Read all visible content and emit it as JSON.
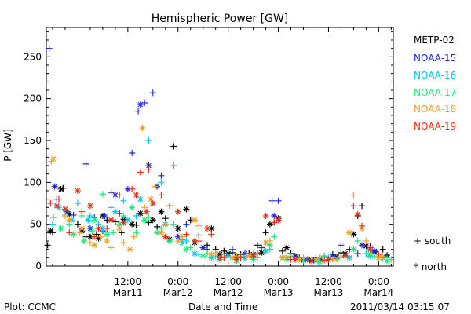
{
  "footer": {
    "plot_label": "Plot: CCMC",
    "xlabel": "Date and Time",
    "timestamp": "2011/03/14 03:15:07"
  },
  "chart_data": {
    "type": "scatter",
    "title": "Hemispheric Power [GW]",
    "xlabel": "Date and Time",
    "ylabel": "P [GW]",
    "x_unit": "hours since 2011-03-11 00:00 UT",
    "xlim": [
      -7.5,
      75.5
    ],
    "ylim": [
      0,
      285
    ],
    "yticks": [
      0,
      50,
      100,
      150,
      200,
      250
    ],
    "xticks": [
      {
        "x": 12,
        "time": "12:00",
        "date": "Mar11"
      },
      {
        "x": 24,
        "time": "0:00",
        "date": "Mar12"
      },
      {
        "x": 36,
        "time": "12:00",
        "date": "Mar12"
      },
      {
        "x": 48,
        "time": "0:00",
        "date": "Mar13"
      },
      {
        "x": 60,
        "time": "12:00",
        "date": "Mar13"
      },
      {
        "x": 72,
        "time": "0:00",
        "date": "Mar14"
      }
    ],
    "marker_legend": [
      {
        "symbol": "+",
        "label": "south"
      },
      {
        "symbol": "*",
        "label": "north"
      }
    ],
    "series": [
      {
        "name": "METP-02",
        "color": "#000000",
        "south": [
          [
            -7.2,
            25
          ],
          [
            -6,
            40
          ],
          [
            -3.5,
            93
          ],
          [
            0,
            50
          ],
          [
            2,
            35
          ],
          [
            4.5,
            38
          ],
          [
            7,
            55
          ],
          [
            9,
            53
          ],
          [
            10.5,
            40
          ],
          [
            14,
            49
          ],
          [
            17,
            52
          ],
          [
            19,
            47
          ],
          [
            21,
            57
          ],
          [
            23,
            143
          ],
          [
            25,
            32
          ],
          [
            27,
            55
          ],
          [
            29,
            37
          ],
          [
            31,
            25
          ],
          [
            33,
            20
          ],
          [
            35,
            18
          ],
          [
            37,
            16
          ],
          [
            39,
            14
          ],
          [
            41,
            15
          ],
          [
            43,
            25
          ],
          [
            45,
            40
          ],
          [
            47,
            52
          ],
          [
            49,
            18
          ],
          [
            51,
            15
          ],
          [
            53,
            10
          ],
          [
            55,
            8
          ],
          [
            57,
            10
          ],
          [
            59,
            12
          ],
          [
            61,
            14
          ],
          [
            63,
            16
          ],
          [
            65,
            20
          ],
          [
            67,
            60
          ],
          [
            68,
            72
          ],
          [
            70,
            24
          ],
          [
            73,
            20
          ]
        ],
        "north": [
          [
            -6.5,
            42
          ],
          [
            -4,
            92
          ],
          [
            -2,
            62
          ],
          [
            1,
            42
          ],
          [
            3,
            35
          ],
          [
            5,
            33
          ],
          [
            6,
            60
          ],
          [
            8,
            55
          ],
          [
            11,
            56
          ],
          [
            13,
            50
          ],
          [
            15,
            63
          ],
          [
            18,
            55
          ],
          [
            20,
            65
          ],
          [
            22,
            32
          ],
          [
            24,
            45
          ],
          [
            26,
            68
          ],
          [
            28,
            28
          ],
          [
            30,
            22
          ],
          [
            32,
            45
          ],
          [
            34,
            14
          ],
          [
            36,
            15
          ],
          [
            38,
            12
          ],
          [
            40,
            10
          ],
          [
            42,
            14
          ],
          [
            44,
            16
          ],
          [
            46,
            50
          ],
          [
            48,
            57
          ],
          [
            50,
            22
          ],
          [
            52,
            12
          ],
          [
            54,
            7
          ],
          [
            56,
            7
          ],
          [
            58,
            8
          ],
          [
            60,
            8
          ],
          [
            62,
            11
          ],
          [
            64,
            15
          ],
          [
            66,
            38
          ],
          [
            69,
            24
          ],
          [
            71,
            17
          ],
          [
            74,
            13
          ]
        ]
      },
      {
        "name": "NOAA-15",
        "color": "#1a2bd6",
        "south": [
          [
            -6.8,
            260
          ],
          [
            -5,
            80
          ],
          [
            -1,
            61
          ],
          [
            2,
            122
          ],
          [
            4,
            58
          ],
          [
            6,
            42
          ],
          [
            8,
            88
          ],
          [
            10,
            63
          ],
          [
            13,
            135
          ],
          [
            14.5,
            185
          ],
          [
            16,
            195
          ],
          [
            18,
            207
          ],
          [
            20,
            108
          ],
          [
            26,
            50
          ],
          [
            31,
            20
          ],
          [
            37,
            20
          ],
          [
            44,
            22
          ],
          [
            46.5,
            78
          ],
          [
            48,
            78
          ],
          [
            52,
            12
          ],
          [
            58,
            8
          ],
          [
            63,
            25
          ],
          [
            67,
            15
          ],
          [
            70,
            22
          ]
        ],
        "north": [
          [
            -5.5,
            95
          ],
          [
            -2.5,
            65
          ],
          [
            3,
            45
          ],
          [
            6.5,
            60
          ],
          [
            9,
            85
          ],
          [
            12,
            92
          ],
          [
            15,
            193
          ],
          [
            17,
            120
          ],
          [
            19,
            95
          ],
          [
            24,
            35
          ],
          [
            30,
            22
          ],
          [
            40,
            15
          ],
          [
            47,
            60
          ],
          [
            55,
            8
          ],
          [
            61,
            12
          ],
          [
            68,
            25
          ],
          [
            71,
            18
          ]
        ]
      },
      {
        "name": "NOAA-16",
        "color": "#00c8e0",
        "south": [
          [
            -6,
            50
          ],
          [
            -3,
            62
          ],
          [
            0,
            75
          ],
          [
            3,
            60
          ],
          [
            5,
            50
          ],
          [
            8,
            70
          ],
          [
            11,
            78
          ],
          [
            14,
            60
          ],
          [
            17,
            150
          ],
          [
            20,
            100
          ],
          [
            23,
            120
          ],
          [
            26,
            30
          ],
          [
            29,
            14
          ],
          [
            33,
            12
          ],
          [
            38,
            10
          ],
          [
            42,
            12
          ],
          [
            46,
            20
          ],
          [
            50,
            10
          ],
          [
            56,
            8
          ],
          [
            60,
            10
          ],
          [
            64,
            12
          ],
          [
            69,
            15
          ],
          [
            74,
            10
          ]
        ],
        "north": [
          [
            -4.5,
            70
          ],
          [
            -1.5,
            55
          ],
          [
            2.5,
            55
          ],
          [
            6,
            45
          ],
          [
            9,
            65
          ],
          [
            12,
            55
          ],
          [
            15,
            80
          ],
          [
            18,
            75
          ],
          [
            21,
            50
          ],
          [
            25,
            28
          ],
          [
            28,
            15
          ],
          [
            32,
            10
          ],
          [
            36,
            12
          ],
          [
            40,
            10
          ],
          [
            45,
            18
          ],
          [
            49,
            10
          ],
          [
            53,
            8
          ],
          [
            57,
            6
          ],
          [
            61,
            8
          ],
          [
            65,
            10
          ],
          [
            70,
            12
          ],
          [
            73,
            10
          ]
        ]
      },
      {
        "name": "NOAA-17",
        "color": "#1ee87a",
        "south": [
          [
            -5.8,
            58
          ],
          [
            -2,
            50
          ],
          [
            1,
            60
          ],
          [
            3.5,
            42
          ],
          [
            6,
            86
          ],
          [
            8.5,
            40
          ],
          [
            11,
            60
          ],
          [
            14,
            40
          ],
          [
            17,
            58
          ],
          [
            20,
            45
          ],
          [
            23,
            50
          ],
          [
            27,
            22
          ],
          [
            31,
            15
          ],
          [
            35,
            10
          ],
          [
            39,
            12
          ],
          [
            43,
            10
          ],
          [
            47,
            35
          ],
          [
            51,
            12
          ],
          [
            55,
            8
          ],
          [
            59,
            12
          ],
          [
            63,
            10
          ],
          [
            67,
            30
          ],
          [
            71,
            12
          ],
          [
            75,
            8
          ]
        ],
        "north": [
          [
            -4,
            45
          ],
          [
            -1,
            38
          ],
          [
            1.5,
            30
          ],
          [
            4,
            55
          ],
          [
            7,
            38
          ],
          [
            10,
            50
          ],
          [
            13,
            70
          ],
          [
            16,
            55
          ],
          [
            19,
            40
          ],
          [
            22,
            30
          ],
          [
            26,
            20
          ],
          [
            30,
            12
          ],
          [
            34,
            8
          ],
          [
            38,
            6
          ],
          [
            42,
            8
          ],
          [
            46,
            25
          ],
          [
            50,
            8
          ],
          [
            54,
            6
          ],
          [
            58,
            5
          ],
          [
            62,
            8
          ],
          [
            66,
            20
          ],
          [
            70,
            15
          ],
          [
            74,
            6
          ]
        ]
      },
      {
        "name": "NOAA-18",
        "color": "#f0a020",
        "south": [
          [
            -6.3,
            125
          ],
          [
            -3,
            60
          ],
          [
            0.5,
            40
          ],
          [
            3,
            28
          ],
          [
            5.5,
            35
          ],
          [
            8,
            22
          ],
          [
            11,
            28
          ],
          [
            13.5,
            35
          ],
          [
            16,
            70
          ],
          [
            18.5,
            95
          ],
          [
            21,
            50
          ],
          [
            25,
            35
          ],
          [
            29,
            48
          ],
          [
            33,
            16
          ],
          [
            38,
            12
          ],
          [
            42,
            15
          ],
          [
            46,
            30
          ],
          [
            50,
            12
          ],
          [
            54,
            10
          ],
          [
            58,
            10
          ],
          [
            62,
            8
          ],
          [
            66,
            85
          ],
          [
            69,
            30
          ],
          [
            73,
            12
          ]
        ],
        "north": [
          [
            -5.8,
            128
          ],
          [
            -2,
            55
          ],
          [
            1,
            45
          ],
          [
            4,
            25
          ],
          [
            7,
            30
          ],
          [
            10,
            45
          ],
          [
            12.5,
            20
          ],
          [
            15.5,
            165
          ],
          [
            17.5,
            80
          ],
          [
            20,
            40
          ],
          [
            24,
            30
          ],
          [
            28,
            55
          ],
          [
            32,
            14
          ],
          [
            37,
            10
          ],
          [
            41,
            12
          ],
          [
            45,
            28
          ],
          [
            49,
            10
          ],
          [
            53,
            8
          ],
          [
            57,
            8
          ],
          [
            61,
            8
          ],
          [
            65,
            40
          ],
          [
            68,
            45
          ],
          [
            72,
            10
          ]
        ]
      },
      {
        "name": "NOAA-19",
        "color": "#e83018",
        "south": [
          [
            -6.5,
            75
          ],
          [
            -4.5,
            80
          ],
          [
            -2,
            40
          ],
          [
            1,
            65
          ],
          [
            4,
            35
          ],
          [
            7,
            45
          ],
          [
            10,
            85
          ],
          [
            13,
            92
          ],
          [
            15,
            112
          ],
          [
            17,
            115
          ],
          [
            20,
            85
          ],
          [
            22,
            72
          ],
          [
            26,
            38
          ],
          [
            29,
            30
          ],
          [
            32,
            38
          ],
          [
            35,
            10
          ],
          [
            39,
            10
          ],
          [
            43,
            15
          ],
          [
            47,
            52
          ],
          [
            51,
            8
          ],
          [
            55,
            8
          ],
          [
            59,
            7
          ],
          [
            63,
            15
          ],
          [
            66,
            72
          ],
          [
            68,
            48
          ],
          [
            72,
            14
          ]
        ],
        "north": [
          [
            -5,
            72
          ],
          [
            -3,
            68
          ],
          [
            0,
            90
          ],
          [
            3,
            72
          ],
          [
            5,
            45
          ],
          [
            8,
            55
          ],
          [
            11,
            52
          ],
          [
            14,
            85
          ],
          [
            16.5,
            65
          ],
          [
            18,
            75
          ],
          [
            21,
            35
          ],
          [
            24,
            65
          ],
          [
            28,
            30
          ],
          [
            31,
            45
          ],
          [
            34,
            10
          ],
          [
            38,
            8
          ],
          [
            42,
            12
          ],
          [
            45,
            60
          ],
          [
            48,
            55
          ],
          [
            52,
            8
          ],
          [
            56,
            6
          ],
          [
            60,
            8
          ],
          [
            64,
            12
          ],
          [
            67,
            62
          ],
          [
            70,
            20
          ]
        ]
      }
    ]
  }
}
